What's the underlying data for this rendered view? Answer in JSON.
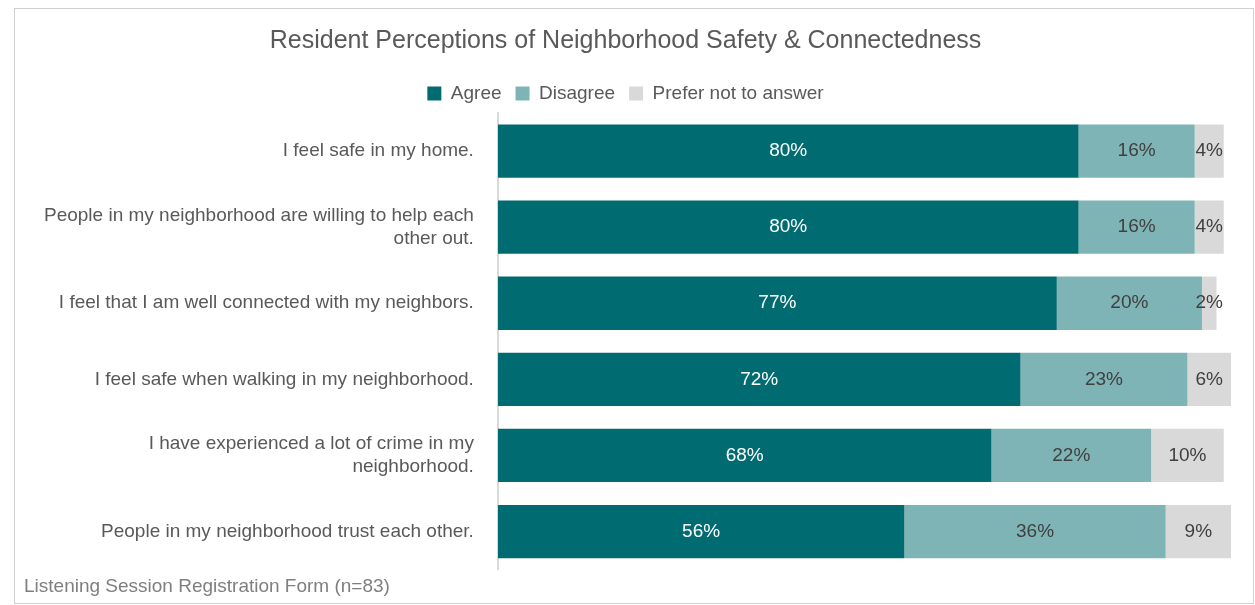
{
  "chart_data": {
    "type": "bar",
    "orientation": "horizontal",
    "stacked": true,
    "title": "Resident Perceptions of Neighborhood Safety & Connectedness",
    "categories": [
      "I feel safe in my home.",
      "People in my neighborhood are willing to help each other out.",
      "I feel that I am well connected with my neighbors.",
      "I feel safe when walking in my neighborhood.",
      "I have experienced a lot of crime in my neighborhood.",
      "People in my neighborhood trust each other."
    ],
    "series": [
      {
        "name": "Agree",
        "color": "#006b71",
        "values": [
          80,
          80,
          77,
          72,
          68,
          56
        ],
        "value_labels": [
          "80%",
          "80%",
          "77%",
          "72%",
          "68%",
          "56%"
        ]
      },
      {
        "name": "Disagree",
        "color": "#7fb4b6",
        "values": [
          16,
          16,
          20,
          23,
          22,
          36
        ],
        "value_labels": [
          "16%",
          "16%",
          "20%",
          "23%",
          "22%",
          "36%"
        ]
      },
      {
        "name": "Prefer not to answer",
        "color": "#d9d9d9",
        "values": [
          4,
          4,
          2,
          6,
          10,
          9
        ],
        "value_labels": [
          "4%",
          "4%",
          "2%",
          "6%",
          "10%",
          "9%"
        ]
      }
    ],
    "tick_labels": "y",
    "legend": "top",
    "annotations": [
      "Listening Session Registration Form (n=83)"
    ]
  }
}
